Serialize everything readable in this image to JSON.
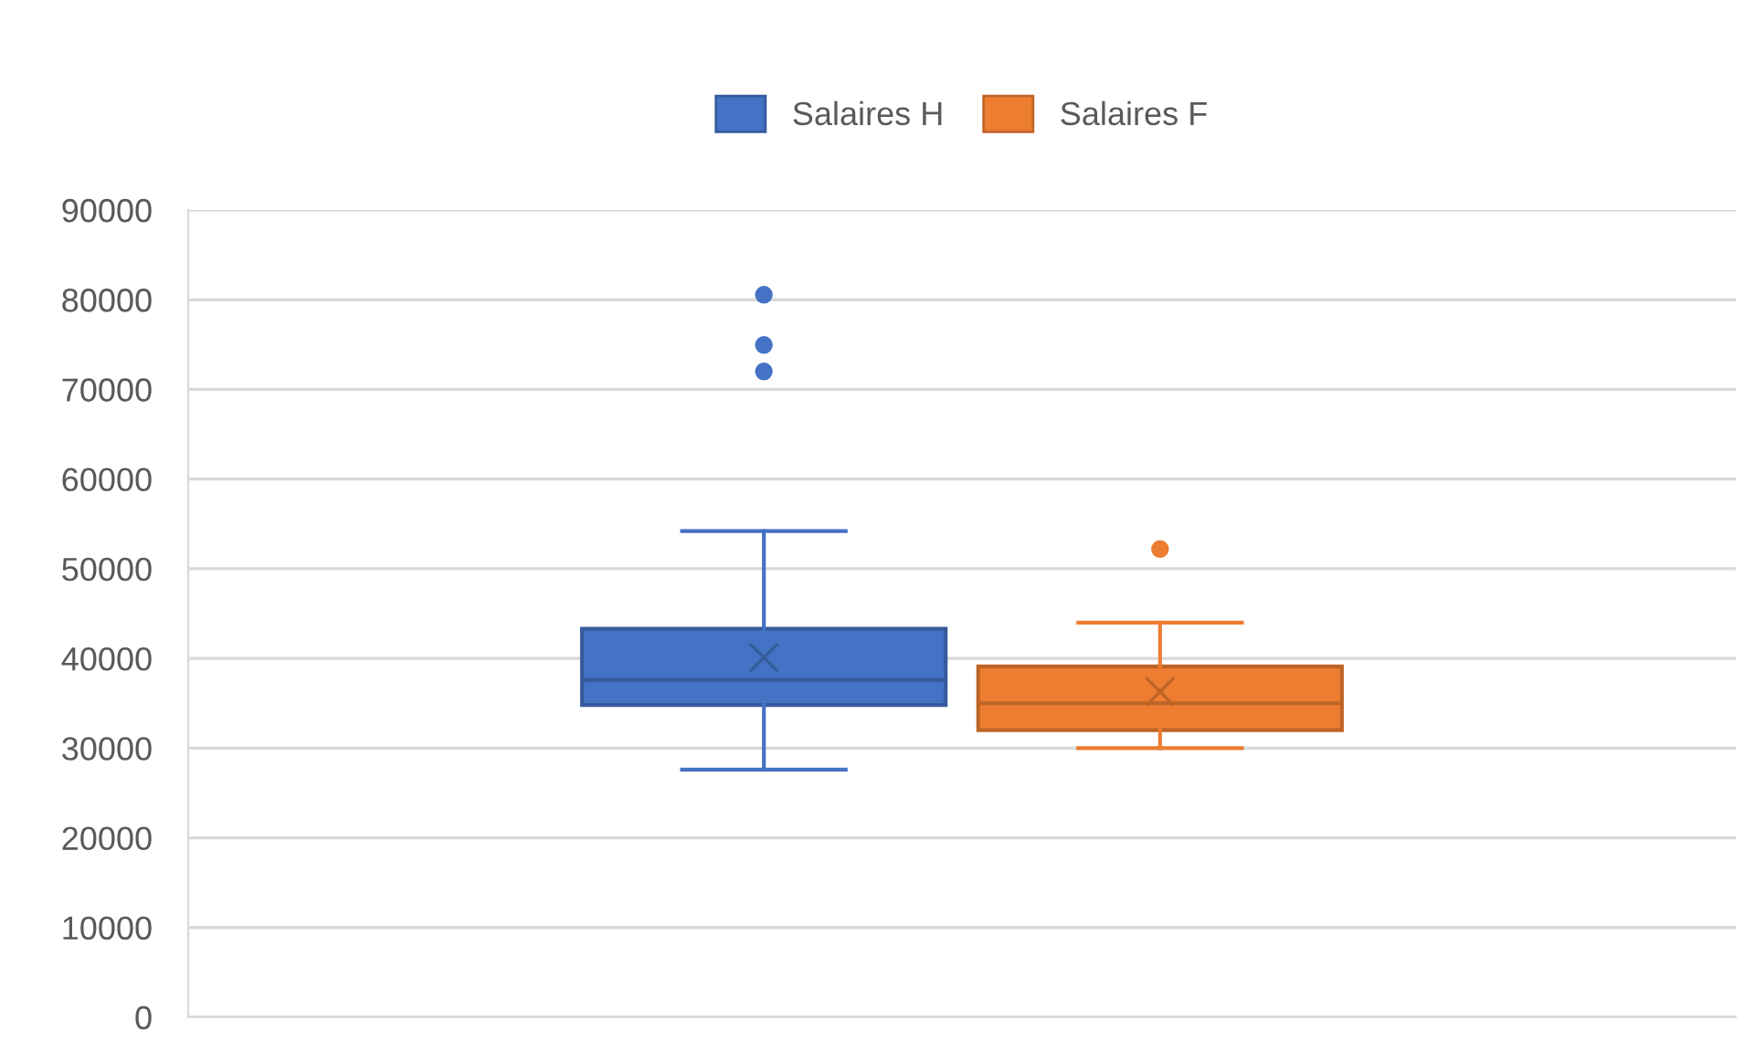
{
  "chart_data": {
    "type": "box",
    "categories": [
      null
    ],
    "series": [
      {
        "name": "Salaires H",
        "color": "#4472c4",
        "boxes": [
          {
            "low": 27600,
            "q1": 34800,
            "median": 37600,
            "q3": 43300,
            "high": 54200,
            "mean": 40100,
            "outliers": [
              72000,
              74950,
              80550
            ]
          }
        ]
      },
      {
        "name": "Salaires F",
        "color": "#ed7d31",
        "boxes": [
          {
            "low": 30000,
            "q1": 32000,
            "median": 35000,
            "q3": 39100,
            "high": 44000,
            "mean": 36300,
            "outliers": [
              52200
            ]
          }
        ]
      }
    ],
    "ylim": [
      0,
      90000
    ],
    "yticks": [
      0,
      10000,
      20000,
      30000,
      40000,
      50000,
      60000,
      70000,
      80000,
      90000
    ],
    "grid": "y",
    "legend": "top",
    "tick_labels": "y"
  }
}
